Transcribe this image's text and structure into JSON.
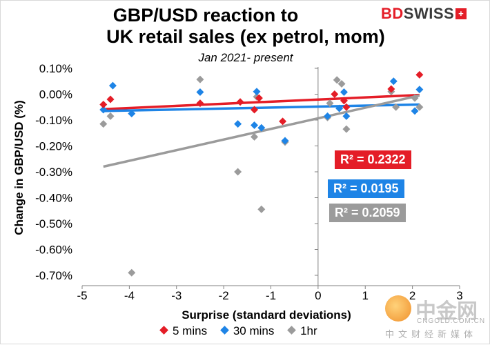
{
  "chart_data": {
    "type": "scatter",
    "title_line1": "GBP/USD reaction to",
    "title_line2": "UK retail sales (ex petrol, mom)",
    "subtitle": "Jan 2021- present",
    "xlabel": "Surprise (standard deviations)",
    "ylabel": "Change in GBP/USD  (%)",
    "xlim": [
      -5,
      3
    ],
    "ylim": [
      -0.7,
      0.1
    ],
    "x_ticks": [
      -5,
      -4,
      -3,
      -2,
      -1,
      0,
      1,
      2,
      3
    ],
    "x_tick_labels": [
      "-5",
      "-4",
      "-3",
      "-2",
      "-1",
      "0",
      "1",
      "2",
      "3"
    ],
    "y_ticks": [
      0.1,
      0.0,
      -0.1,
      -0.2,
      -0.3,
      -0.4,
      -0.5,
      -0.6,
      -0.7
    ],
    "y_tick_labels": [
      "0.10%",
      "0.00%",
      "-0.10%",
      "-0.20%",
      "-0.30%",
      "-0.40%",
      "-0.50%",
      "-0.60%",
      "-0.70%"
    ],
    "grid": false,
    "legend_position": "bottom",
    "series": [
      {
        "name": "5 mins",
        "color": "#e41d27",
        "points": [
          [
            -4.55,
            -0.04
          ],
          [
            -4.4,
            -0.02
          ],
          [
            -2.5,
            -0.035
          ],
          [
            -1.65,
            -0.03
          ],
          [
            -1.35,
            -0.06
          ],
          [
            -1.25,
            -0.015
          ],
          [
            -0.75,
            -0.105
          ],
          [
            0.35,
            0.0
          ],
          [
            0.55,
            -0.025
          ],
          [
            0.6,
            -0.05
          ],
          [
            1.55,
            0.02
          ],
          [
            2.15,
            0.075
          ]
        ],
        "trend": {
          "x": [
            -4.55,
            2.15
          ],
          "y": [
            -0.058,
            -0.003
          ],
          "r2_label": "R² = 0.2322"
        }
      },
      {
        "name": "30 mins",
        "color": "#1e84e6",
        "points": [
          [
            -4.55,
            -0.06
          ],
          [
            -4.35,
            0.033
          ],
          [
            -3.95,
            -0.075
          ],
          [
            -2.5,
            0.008
          ],
          [
            -1.7,
            -0.115
          ],
          [
            -1.35,
            -0.12
          ],
          [
            -1.3,
            0.01
          ],
          [
            -1.2,
            -0.13
          ],
          [
            -0.7,
            -0.18
          ],
          [
            0.2,
            -0.085
          ],
          [
            0.45,
            -0.055
          ],
          [
            0.55,
            0.008
          ],
          [
            0.6,
            -0.085
          ],
          [
            1.6,
            0.05
          ],
          [
            2.05,
            -0.065
          ],
          [
            2.15,
            0.018
          ]
        ],
        "trend": {
          "x": [
            -4.55,
            2.15
          ],
          "y": [
            -0.065,
            -0.04
          ],
          "r2_label": "R² = 0.0195"
        }
      },
      {
        "name": "1hr",
        "color": "#9b9b9b",
        "points": [
          [
            -4.55,
            -0.115
          ],
          [
            -4.4,
            -0.085
          ],
          [
            -3.95,
            -0.69
          ],
          [
            -2.5,
            0.057
          ],
          [
            -1.7,
            -0.3
          ],
          [
            -1.35,
            -0.165
          ],
          [
            -1.3,
            -0.01
          ],
          [
            -1.2,
            -0.445
          ],
          [
            -0.7,
            -0.185
          ],
          [
            0.2,
            -0.09
          ],
          [
            0.25,
            -0.035
          ],
          [
            0.4,
            0.055
          ],
          [
            0.5,
            0.04
          ],
          [
            0.6,
            -0.135
          ],
          [
            1.55,
            0.01
          ],
          [
            1.65,
            -0.05
          ],
          [
            2.05,
            -0.015
          ],
          [
            2.15,
            -0.05
          ]
        ],
        "trend": {
          "x": [
            -4.55,
            2.15
          ],
          "y": [
            -0.28,
            -0.005
          ],
          "r2_label": "R² = 0.2059"
        }
      }
    ]
  },
  "logo": {
    "part1": "BD",
    "part2": "SWISS",
    "mark": "+"
  },
  "watermark": {
    "brand": "中金网",
    "url": "CNGOLD.COM.CN",
    "tagline": "中文财经新媒体"
  }
}
